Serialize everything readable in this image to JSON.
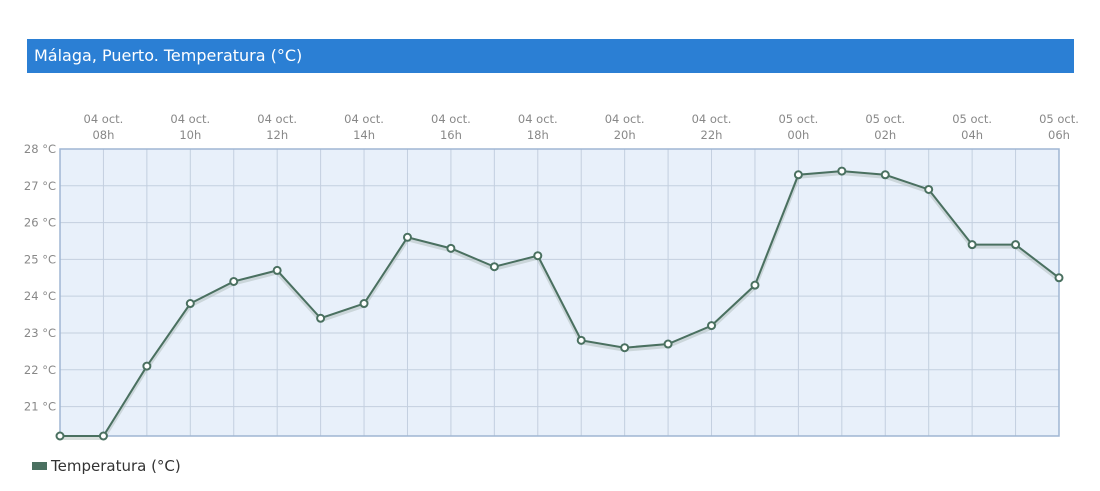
{
  "title": "Málaga, Puerto. Temperatura (°C)",
  "legend_label": "Temperatura (°C)",
  "chart_data": {
    "type": "line",
    "title": "Málaga, Puerto. Temperatura (°C)",
    "x": [
      "04 oct. 07h",
      "04 oct. 08h",
      "04 oct. 09h",
      "04 oct. 10h",
      "04 oct. 11h",
      "04 oct. 12h",
      "04 oct. 13h",
      "04 oct. 14h",
      "04 oct. 15h",
      "04 oct. 16h",
      "04 oct. 17h",
      "04 oct. 18h",
      "04 oct. 19h",
      "04 oct. 20h",
      "04 oct. 21h",
      "04 oct. 22h",
      "04 oct. 23h",
      "05 oct. 00h",
      "05 oct. 01h",
      "05 oct. 02h",
      "05 oct. 03h",
      "05 oct. 04h",
      "05 oct. 05h",
      "05 oct. 06h"
    ],
    "x_tick_labels": [
      [
        "04 oct.",
        "08h"
      ],
      [
        "04 oct.",
        "10h"
      ],
      [
        "04 oct.",
        "12h"
      ],
      [
        "04 oct.",
        "14h"
      ],
      [
        "04 oct.",
        "16h"
      ],
      [
        "04 oct.",
        "18h"
      ],
      [
        "04 oct.",
        "20h"
      ],
      [
        "04 oct.",
        "22h"
      ],
      [
        "05 oct.",
        "00h"
      ],
      [
        "05 oct.",
        "02h"
      ],
      [
        "05 oct.",
        "04h"
      ],
      [
        "05 oct.",
        "06h"
      ]
    ],
    "series": [
      {
        "name": "Temperatura (°C)",
        "color": "#4a7060",
        "values": [
          20.2,
          20.2,
          22.1,
          23.8,
          24.4,
          24.7,
          23.4,
          23.8,
          25.6,
          25.3,
          24.8,
          25.1,
          22.8,
          22.6,
          22.7,
          23.2,
          24.3,
          27.3,
          27.4,
          27.3,
          26.9,
          25.4,
          25.4,
          24.5
        ]
      }
    ],
    "y_tick_labels": [
      "28 °C",
      "27 °C",
      "26 °C",
      "25 °C",
      "24 °C",
      "23 °C",
      "22 °C",
      "21 °C"
    ],
    "ylim": [
      20.2,
      28
    ],
    "grid": true,
    "legend": "bottom-left",
    "plot_background": "#e8f0fa",
    "header_color": "#2b7fd4"
  }
}
